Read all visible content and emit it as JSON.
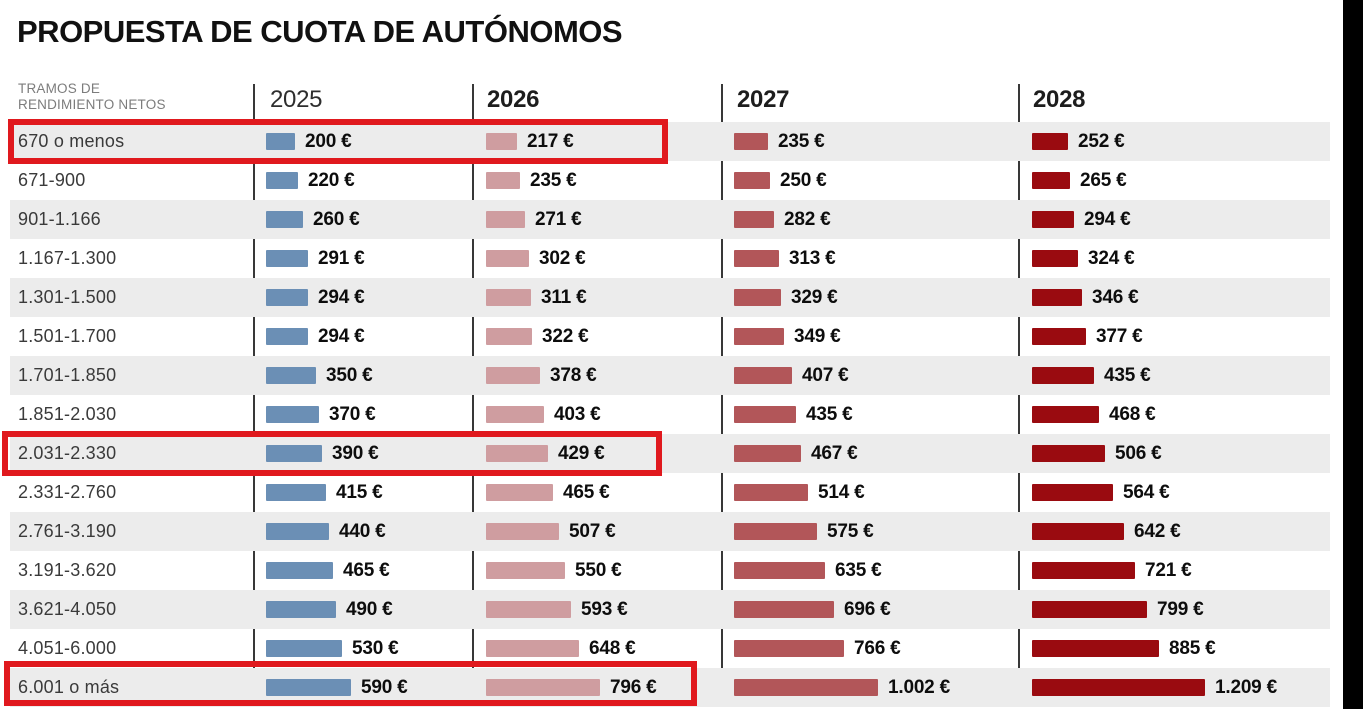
{
  "title": "PROPUESTA DE CUOTA DE AUTÓNOMOS",
  "header": {
    "row_label_line1": "TRAMOS DE",
    "row_label_line2": "RENDIMIENTO NETOS",
    "years": [
      "2025",
      "2026",
      "2027",
      "2028"
    ]
  },
  "chart_data": {
    "type": "bar",
    "title": "PROPUESTA DE CUOTA DE AUTÓNOMOS",
    "unit": "€ / month",
    "orientation": "horizontal",
    "categories": [
      "670 o menos",
      "671-900",
      "901-1.166",
      "1.167-1.300",
      "1.301-1.500",
      "1.501-1.700",
      "1.701-1.850",
      "1.851-2.030",
      "2.031-2.330",
      "2.331-2.760",
      "2.761-3.190",
      "3.191-3.620",
      "3.621-4.050",
      "4.051-6.000",
      "6.001 o más"
    ],
    "series": [
      {
        "name": "2025",
        "color": "#6b8fb5",
        "values": [
          200,
          220,
          260,
          291,
          294,
          294,
          350,
          370,
          390,
          415,
          440,
          465,
          490,
          530,
          590
        ],
        "labels": [
          "200 €",
          "220 €",
          "260 €",
          "291 €",
          "294 €",
          "294 €",
          "350 €",
          "370 €",
          "390 €",
          "415 €",
          "440 €",
          "465 €",
          "490 €",
          "530 €",
          "590 €"
        ]
      },
      {
        "name": "2026",
        "color": "#cf9da0",
        "values": [
          217,
          235,
          271,
          302,
          311,
          322,
          378,
          403,
          429,
          465,
          507,
          550,
          593,
          648,
          796
        ],
        "labels": [
          "217 €",
          "235 €",
          "271 €",
          "302 €",
          "311 €",
          "322 €",
          "378 €",
          "403 €",
          "429 €",
          "465 €",
          "507 €",
          "550 €",
          "593 €",
          "648 €",
          "796 €"
        ]
      },
      {
        "name": "2027",
        "color": "#b25659",
        "values": [
          235,
          250,
          282,
          313,
          329,
          349,
          407,
          435,
          467,
          514,
          575,
          635,
          696,
          766,
          1002
        ],
        "labels": [
          "235 €",
          "250 €",
          "282 €",
          "313 €",
          "329 €",
          "349 €",
          "407 €",
          "435 €",
          "467 €",
          "514 €",
          "575 €",
          "635 €",
          "696 €",
          "766 €",
          "1.002 €"
        ]
      },
      {
        "name": "2028",
        "color": "#9a0b10",
        "values": [
          252,
          265,
          294,
          324,
          346,
          377,
          435,
          468,
          506,
          564,
          642,
          721,
          799,
          885,
          1209
        ],
        "labels": [
          "252 €",
          "265 €",
          "294 €",
          "324 €",
          "346 €",
          "377 €",
          "435 €",
          "468 €",
          "506 €",
          "564 €",
          "642 €",
          "721 €",
          "799 €",
          "885 €",
          "1.209 €"
        ]
      }
    ],
    "highlighted_rows": [
      0,
      8,
      14
    ],
    "highlight_note": "red boxes enclose the row label plus the 2025 and 2026 columns",
    "legend_position": "none",
    "grid": false
  },
  "colors": {
    "stripe": "#ececec",
    "highlight": "#e0191e",
    "divider": "#383838",
    "black_strip": "#000000",
    "header_text": "#7c7c7c",
    "value_text": "#0d0d0d",
    "label_text": "#3a3a3a"
  }
}
